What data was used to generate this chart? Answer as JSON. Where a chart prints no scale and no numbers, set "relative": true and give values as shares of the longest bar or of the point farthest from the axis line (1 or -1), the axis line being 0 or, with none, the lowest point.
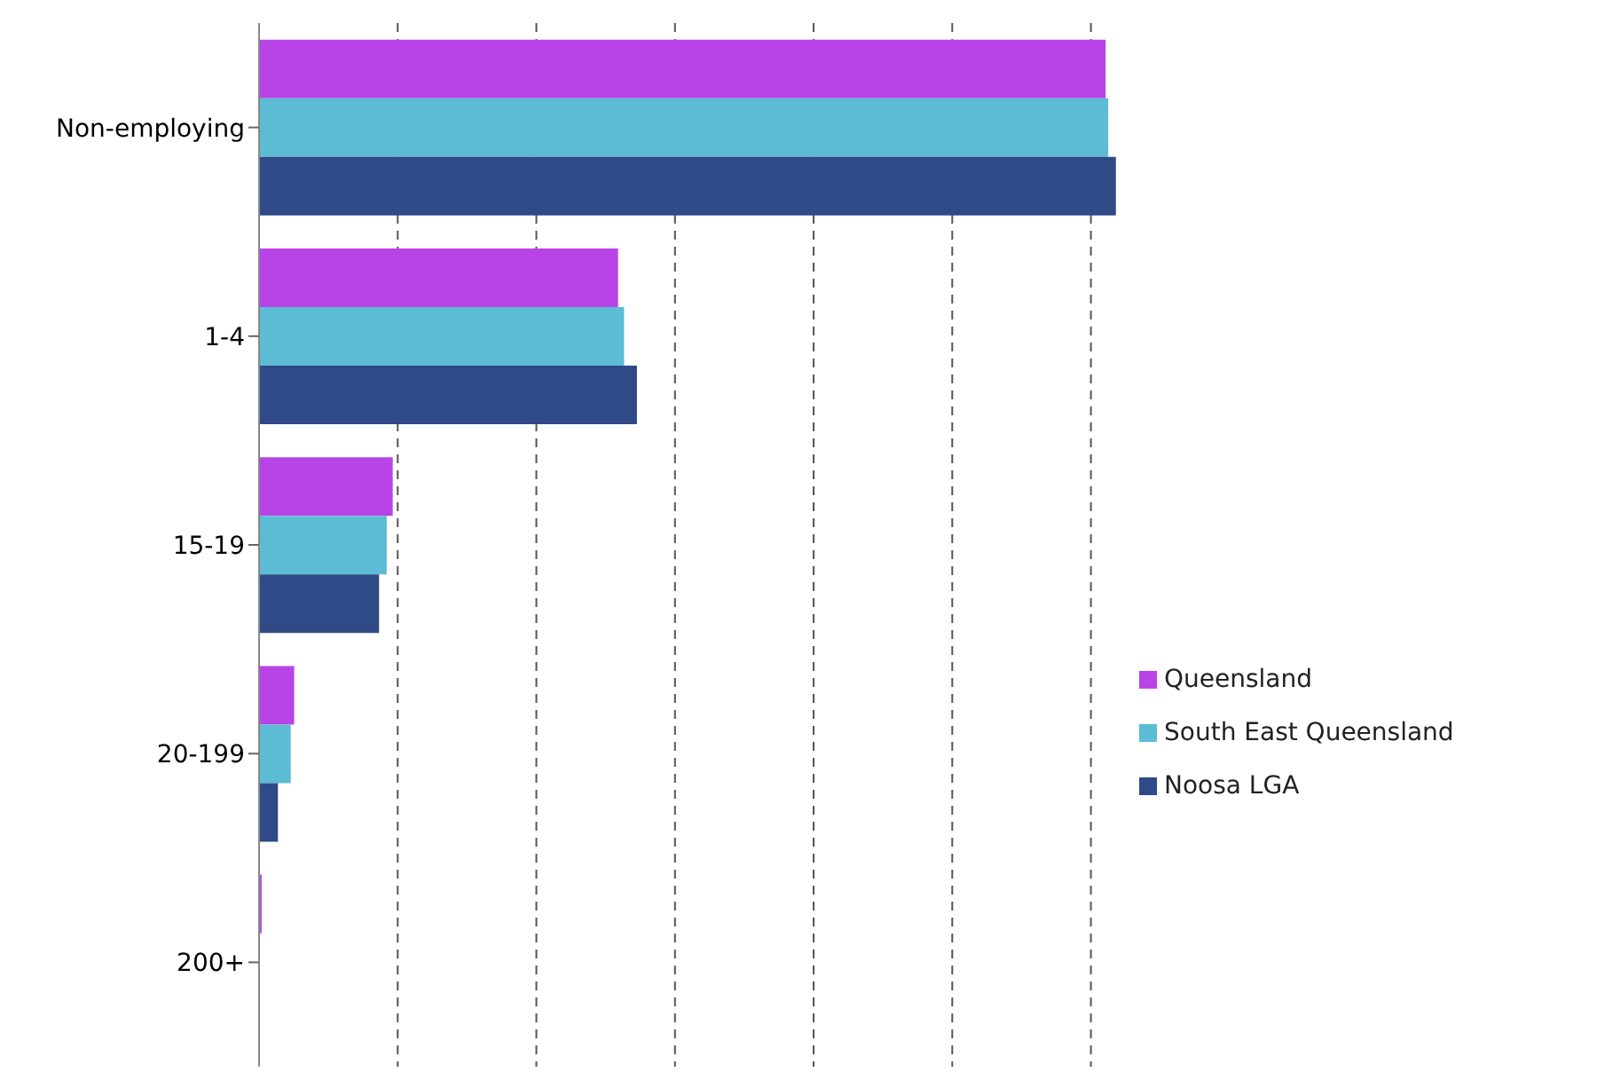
{
  "chart_data": {
    "type": "bar",
    "orientation": "horizontal",
    "relative": true,
    "categories": [
      "Non-employing",
      "1-4",
      "15-19",
      "20-199",
      "200+"
    ],
    "series": [
      {
        "name": "Queensland",
        "color": "#b844e8",
        "values": [
          0.988,
          0.419,
          0.156,
          0.041,
          0.003
        ]
      },
      {
        "name": "South East Queensland",
        "color": "#5cbcd4",
        "values": [
          0.991,
          0.426,
          0.149,
          0.037,
          0.001
        ]
      },
      {
        "name": "Noosa LGA",
        "color": "#2f4a86",
        "values": [
          1,
          0.441,
          0.14,
          0.022,
          0.001
        ]
      }
    ],
    "grid": "x",
    "legend": "right",
    "tick_labels": "y"
  }
}
